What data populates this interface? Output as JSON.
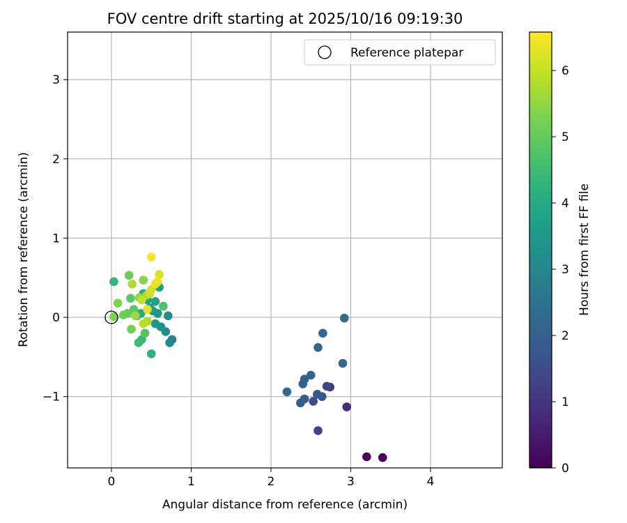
{
  "chart_data": {
    "type": "scatter",
    "title": "FOV centre drift starting at 2025/10/16 09:19:30",
    "xlabel": "Angular distance from reference (arcmin)",
    "ylabel": "Rotation from reference (arcmin)",
    "xlim": [
      -0.55,
      4.9
    ],
    "ylim": [
      -1.9,
      3.6
    ],
    "xticks": [
      0,
      1,
      2,
      3,
      4
    ],
    "xtick_labels": [
      "0",
      "1",
      "2",
      "3",
      "4"
    ],
    "yticks": [
      -1,
      0,
      1,
      2,
      3
    ],
    "ytick_labels": [
      "−1",
      "0",
      "1",
      "2",
      "3"
    ],
    "grid": true,
    "legend": {
      "position": "top-right",
      "entries": [
        "Reference platepar"
      ]
    },
    "reference_point": {
      "x": 0,
      "y": 0,
      "label": "Reference platepar"
    },
    "colorbar": {
      "label": "Hours from first FF file",
      "colormap": "viridis",
      "range": [
        0,
        6.58
      ],
      "ticks": [
        0,
        1,
        2,
        3,
        4,
        5,
        6
      ],
      "tick_labels": [
        "0",
        "1",
        "2",
        "3",
        "4",
        "5",
        "6"
      ]
    },
    "points": [
      {
        "x": 3.4,
        "y": -1.77,
        "t": 0.05
      },
      {
        "x": 3.2,
        "y": -1.76,
        "t": 0.12
      },
      {
        "x": 2.95,
        "y": -1.13,
        "t": 0.8
      },
      {
        "x": 2.74,
        "y": -0.88,
        "t": 1.1
      },
      {
        "x": 2.7,
        "y": -0.87,
        "t": 1.4
      },
      {
        "x": 2.59,
        "y": -1.43,
        "t": 1.3
      },
      {
        "x": 2.53,
        "y": -1.06,
        "t": 1.6
      },
      {
        "x": 2.64,
        "y": -1.0,
        "t": 1.7
      },
      {
        "x": 2.58,
        "y": -0.97,
        "t": 1.8
      },
      {
        "x": 2.42,
        "y": -1.03,
        "t": 1.9
      },
      {
        "x": 2.37,
        "y": -1.08,
        "t": 1.9
      },
      {
        "x": 2.4,
        "y": -0.84,
        "t": 2.0
      },
      {
        "x": 2.42,
        "y": -0.78,
        "t": 2.0
      },
      {
        "x": 2.5,
        "y": -0.73,
        "t": 2.1
      },
      {
        "x": 2.2,
        "y": -0.94,
        "t": 2.2
      },
      {
        "x": 2.9,
        "y": -0.58,
        "t": 2.2
      },
      {
        "x": 2.59,
        "y": -0.38,
        "t": 2.2
      },
      {
        "x": 2.65,
        "y": -0.2,
        "t": 2.2
      },
      {
        "x": 2.92,
        "y": -0.01,
        "t": 2.3
      },
      {
        "x": 0.76,
        "y": -0.28,
        "t": 2.9
      },
      {
        "x": 0.73,
        "y": -0.32,
        "t": 3.0
      },
      {
        "x": 0.68,
        "y": -0.18,
        "t": 3.2
      },
      {
        "x": 0.71,
        "y": 0.02,
        "t": 3.2
      },
      {
        "x": 0.62,
        "y": -0.12,
        "t": 3.3
      },
      {
        "x": 0.55,
        "y": -0.08,
        "t": 3.4
      },
      {
        "x": 0.58,
        "y": 0.05,
        "t": 3.5
      },
      {
        "x": 0.52,
        "y": 0.08,
        "t": 3.6
      },
      {
        "x": 0.48,
        "y": 0.12,
        "t": 3.6
      },
      {
        "x": 0.55,
        "y": 0.2,
        "t": 3.7
      },
      {
        "x": 0.6,
        "y": 0.38,
        "t": 3.7
      },
      {
        "x": 0.45,
        "y": 0.22,
        "t": 3.8
      },
      {
        "x": 0.4,
        "y": 0.3,
        "t": 3.9
      },
      {
        "x": 0.37,
        "y": 0.05,
        "t": 4.0
      },
      {
        "x": 0.32,
        "y": 0.02,
        "t": 4.1
      },
      {
        "x": 0.5,
        "y": -0.46,
        "t": 4.2
      },
      {
        "x": 0.03,
        "y": 0.45,
        "t": 4.3
      },
      {
        "x": 0.38,
        "y": -0.28,
        "t": 4.4
      },
      {
        "x": 0.34,
        "y": -0.32,
        "t": 4.5
      },
      {
        "x": 0.65,
        "y": 0.14,
        "t": 4.7
      },
      {
        "x": 0.42,
        "y": -0.2,
        "t": 4.8
      },
      {
        "x": 0.28,
        "y": 0.1,
        "t": 4.9
      },
      {
        "x": 0.24,
        "y": 0.24,
        "t": 4.9
      },
      {
        "x": 0.2,
        "y": 0.05,
        "t": 5.0
      },
      {
        "x": 0.22,
        "y": 0.53,
        "t": 5.1
      },
      {
        "x": 0.15,
        "y": 0.03,
        "t": 5.1
      },
      {
        "x": 0.25,
        "y": -0.15,
        "t": 5.2
      },
      {
        "x": 0.08,
        "y": 0.18,
        "t": 5.3
      },
      {
        "x": 0.03,
        "y": 0.01,
        "t": 5.3
      },
      {
        "x": 0.4,
        "y": 0.47,
        "t": 5.4
      },
      {
        "x": 0.35,
        "y": 0.25,
        "t": 5.5
      },
      {
        "x": 0.3,
        "y": 0.02,
        "t": 5.6
      },
      {
        "x": 0.44,
        "y": 0.28,
        "t": 5.7
      },
      {
        "x": 0.45,
        "y": -0.05,
        "t": 5.8
      },
      {
        "x": 0.26,
        "y": 0.42,
        "t": 5.8
      },
      {
        "x": 0.4,
        "y": -0.08,
        "t": 5.9
      },
      {
        "x": 0.38,
        "y": 0.22,
        "t": 6.0
      },
      {
        "x": 0.48,
        "y": 0.3,
        "t": 6.1
      },
      {
        "x": 0.5,
        "y": 0.35,
        "t": 6.1
      },
      {
        "x": 0.6,
        "y": 0.54,
        "t": 6.2
      },
      {
        "x": 0.55,
        "y": 0.42,
        "t": 6.3
      },
      {
        "x": 0.45,
        "y": 0.1,
        "t": 6.3
      },
      {
        "x": 0.58,
        "y": 0.45,
        "t": 6.4
      },
      {
        "x": 0.5,
        "y": 0.76,
        "t": 6.5
      }
    ]
  }
}
